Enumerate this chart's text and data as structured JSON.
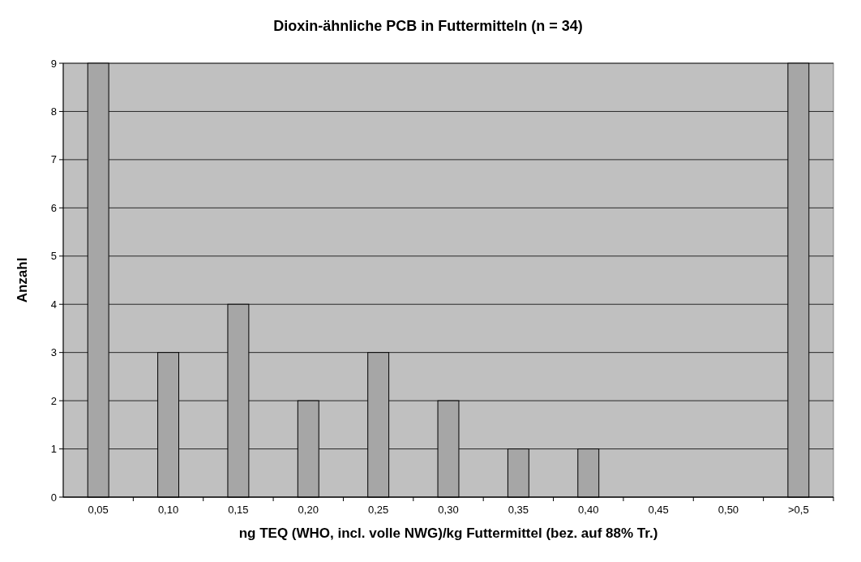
{
  "chart_data": {
    "type": "bar",
    "title": "Dioxin-ähnliche PCB in Futtermitteln (n = 34)",
    "xlabel": "ng TEQ (WHO, incl. volle NWG)/kg Futtermittel (bez. auf 88% Tr.)",
    "ylabel": "Anzahl",
    "categories": [
      "0,05",
      "0,10",
      "0,15",
      "0,20",
      "0,25",
      "0,30",
      "0,35",
      "0,40",
      "0,45",
      "0,50",
      ">0,5"
    ],
    "values": [
      9,
      3,
      4,
      2,
      3,
      2,
      1,
      1,
      0,
      0,
      9
    ],
    "color": "#a6a6a6",
    "ylim": [
      0,
      9
    ],
    "yticks": [
      0,
      1,
      2,
      3,
      4,
      5,
      6,
      7,
      8,
      9
    ],
    "grid": "y"
  }
}
